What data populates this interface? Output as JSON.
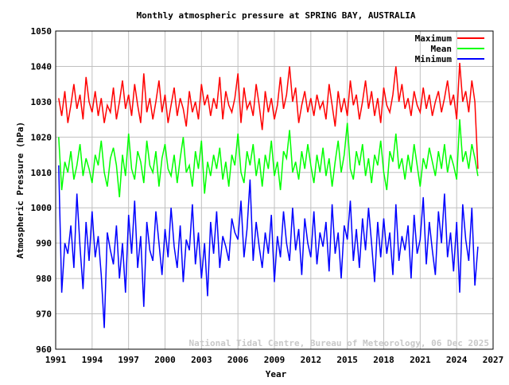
{
  "chart_data": {
    "type": "line",
    "title": "Monthly atmospheric pressure at SPRING BAY, AUSTRALIA",
    "xlabel": "Year",
    "ylabel": "Atmospheric Pressure (hPa)",
    "xlim": [
      1991,
      2027
    ],
    "ylim": [
      960,
      1050
    ],
    "xticks": [
      "1991",
      "1994",
      "1997",
      "2000",
      "2003",
      "2006",
      "2009",
      "2012",
      "2015",
      "2018",
      "2021",
      "2024",
      "2027"
    ],
    "yticks": [
      "960",
      "970",
      "980",
      "990",
      "1000",
      "1010",
      "1020",
      "1030",
      "1040",
      "1050"
    ],
    "grid": true,
    "legend_position": "top-right",
    "annotation": "National Tidal Centre, Bureau of Meteorology, 06 Dec 2025",
    "x": [
      1991.25,
      1991.5,
      1991.75,
      1992,
      1992.25,
      1992.5,
      1992.75,
      1993,
      1993.25,
      1993.5,
      1993.75,
      1994,
      1994.25,
      1994.5,
      1994.75,
      1995,
      1995.25,
      1995.5,
      1995.75,
      1996,
      1996.25,
      1996.5,
      1996.75,
      1997,
      1997.25,
      1997.5,
      1997.75,
      1998,
      1998.25,
      1998.5,
      1998.75,
      1999,
      1999.25,
      1999.5,
      1999.75,
      2000,
      2000.25,
      2000.5,
      2000.75,
      2001,
      2001.25,
      2001.5,
      2001.75,
      2002,
      2002.25,
      2002.5,
      2002.75,
      2003,
      2003.25,
      2003.5,
      2003.75,
      2004,
      2004.25,
      2004.5,
      2004.75,
      2005,
      2005.25,
      2005.5,
      2005.75,
      2006,
      2006.25,
      2006.5,
      2006.75,
      2007,
      2007.25,
      2007.5,
      2007.75,
      2008,
      2008.25,
      2008.5,
      2008.75,
      2009,
      2009.25,
      2009.5,
      2009.75,
      2010,
      2010.25,
      2010.5,
      2010.75,
      2011,
      2011.25,
      2011.5,
      2011.75,
      2012,
      2012.25,
      2012.5,
      2012.75,
      2013,
      2013.25,
      2013.5,
      2013.75,
      2014,
      2014.25,
      2014.5,
      2014.75,
      2015,
      2015.25,
      2015.5,
      2015.75,
      2016,
      2016.25,
      2016.5,
      2016.75,
      2017,
      2017.25,
      2017.5,
      2017.75,
      2018,
      2018.25,
      2018.5,
      2018.75,
      2019,
      2019.25,
      2019.5,
      2019.75,
      2020,
      2020.25,
      2020.5,
      2020.75,
      2021,
      2021.25,
      2021.5,
      2021.75,
      2022,
      2022.25,
      2022.5,
      2022.75,
      2023,
      2023.25,
      2023.5,
      2023.75,
      2024,
      2024.25,
      2024.5,
      2024.75,
      2025,
      2025.25,
      2025.5,
      2025.75
    ],
    "series": [
      {
        "name": "Maximum",
        "color": "#ff0000",
        "values": [
          1031,
          1026,
          1033,
          1024,
          1029,
          1035,
          1028,
          1032,
          1025,
          1037,
          1030,
          1027,
          1033,
          1026,
          1031,
          1024,
          1029,
          1027,
          1034,
          1025,
          1030,
          1036,
          1028,
          1032,
          1026,
          1035,
          1029,
          1024,
          1038,
          1027,
          1031,
          1025,
          1030,
          1036,
          1027,
          1032,
          1024,
          1029,
          1034,
          1026,
          1031,
          1028,
          1023,
          1033,
          1027,
          1030,
          1025,
          1035,
          1029,
          1032,
          1026,
          1031,
          1028,
          1037,
          1025,
          1033,
          1029,
          1027,
          1031,
          1038,
          1024,
          1034,
          1028,
          1030,
          1026,
          1035,
          1029,
          1022,
          1033,
          1027,
          1031,
          1025,
          1029,
          1037,
          1028,
          1032,
          1040,
          1030,
          1034,
          1024,
          1029,
          1033,
          1027,
          1031,
          1026,
          1032,
          1028,
          1030,
          1025,
          1035,
          1029,
          1023,
          1033,
          1027,
          1031,
          1026,
          1036,
          1029,
          1032,
          1025,
          1030,
          1036,
          1028,
          1033,
          1026,
          1031,
          1024,
          1034,
          1029,
          1027,
          1032,
          1040,
          1030,
          1035,
          1028,
          1031,
          1026,
          1033,
          1029,
          1027,
          1034,
          1028,
          1032,
          1026,
          1030,
          1033,
          1027,
          1031,
          1036,
          1029,
          1032,
          1025,
          1041,
          1030,
          1033,
          1027,
          1036,
          1030,
          1011
        ]
      },
      {
        "name": "Mean",
        "color": "#00ff00",
        "values": [
          1020,
          1005,
          1013,
          1010,
          1016,
          1008,
          1012,
          1018,
          1009,
          1014,
          1011,
          1007,
          1015,
          1012,
          1019,
          1010,
          1006,
          1014,
          1017,
          1012,
          1003,
          1015,
          1009,
          1021,
          1011,
          1008,
          1016,
          1013,
          1007,
          1019,
          1012,
          1010,
          1016,
          1006,
          1014,
          1018,
          1011,
          1009,
          1015,
          1007,
          1014,
          1020,
          1010,
          1012,
          1006,
          1016,
          1011,
          1019,
          1004,
          1013,
          1009,
          1015,
          1011,
          1017,
          1008,
          1013,
          1006,
          1015,
          1012,
          1021,
          1010,
          1007,
          1016,
          1012,
          1018,
          1009,
          1014,
          1006,
          1015,
          1011,
          1019,
          1009,
          1013,
          1005,
          1016,
          1014,
          1022,
          1010,
          1013,
          1008,
          1016,
          1011,
          1018,
          1012,
          1007,
          1015,
          1010,
          1017,
          1009,
          1014,
          1006,
          1013,
          1019,
          1010,
          1015,
          1024,
          1011,
          1008,
          1016,
          1012,
          1018,
          1009,
          1014,
          1007,
          1015,
          1012,
          1019,
          1010,
          1005,
          1016,
          1013,
          1021,
          1011,
          1014,
          1008,
          1015,
          1010,
          1018,
          1012,
          1006,
          1014,
          1011,
          1017,
          1013,
          1009,
          1016,
          1011,
          1018,
          1010,
          1015,
          1012,
          1008,
          1025,
          1013,
          1016,
          1011,
          1018,
          1014,
          1009
        ]
      },
      {
        "name": "Minimum",
        "color": "#0000ff",
        "values": [
          1012,
          976,
          990,
          987,
          995,
          983,
          1004,
          989,
          977,
          996,
          985,
          999,
          986,
          992,
          981,
          966,
          993,
          988,
          984,
          995,
          980,
          990,
          976,
          998,
          987,
          1002,
          983,
          992,
          972,
          996,
          988,
          985,
          999,
          990,
          981,
          994,
          986,
          1000,
          989,
          983,
          995,
          979,
          991,
          988,
          1001,
          984,
          993,
          980,
          990,
          975,
          996,
          987,
          999,
          983,
          992,
          989,
          985,
          997,
          993,
          991,
          1002,
          986,
          994,
          1008,
          985,
          996,
          989,
          983,
          993,
          987,
          998,
          979,
          992,
          986,
          999,
          990,
          985,
          1000,
          988,
          994,
          981,
          997,
          990,
          986,
          999,
          984,
          993,
          989,
          996,
          982,
          1001,
          987,
          993,
          980,
          995,
          991,
          1002,
          985,
          994,
          983,
          997,
          988,
          1000,
          990,
          979,
          996,
          986,
          997,
          987,
          993,
          981,
          1001,
          985,
          992,
          988,
          995,
          980,
          998,
          987,
          991,
          1003,
          984,
          996,
          988,
          981,
          999,
          990,
          1004,
          986,
          993,
          982,
          996,
          976,
          1001,
          991,
          985,
          1000,
          978,
          989
        ]
      }
    ]
  }
}
